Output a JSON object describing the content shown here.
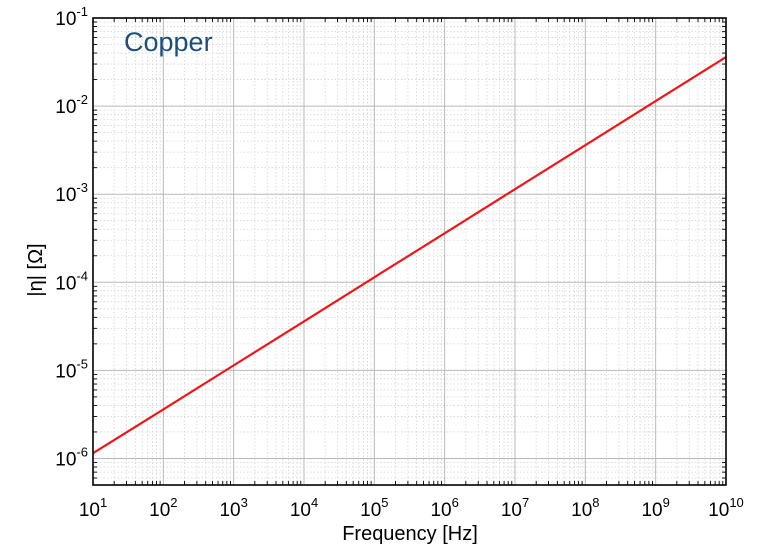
{
  "chart_data": {
    "type": "line",
    "xlabel": "Frequency [Hz]",
    "ylabel": "|η| [Ω]",
    "x_scale": "log",
    "y_scale": "log",
    "xlim": [
      10,
      10000000000
    ],
    "ylim": [
      5e-07,
      0.1
    ],
    "grid": true,
    "x_ticks": [
      {
        "base": "10",
        "exp": "1"
      },
      {
        "base": "10",
        "exp": "2"
      },
      {
        "base": "10",
        "exp": "3"
      },
      {
        "base": "10",
        "exp": "4"
      },
      {
        "base": "10",
        "exp": "5"
      },
      {
        "base": "10",
        "exp": "6"
      },
      {
        "base": "10",
        "exp": "7"
      },
      {
        "base": "10",
        "exp": "8"
      },
      {
        "base": "10",
        "exp": "9"
      },
      {
        "base": "10",
        "exp": "10"
      }
    ],
    "y_ticks": [
      {
        "base": "10",
        "exp": "-6"
      },
      {
        "base": "10",
        "exp": "-5"
      },
      {
        "base": "10",
        "exp": "-4"
      },
      {
        "base": "10",
        "exp": "-3"
      },
      {
        "base": "10",
        "exp": "-2"
      },
      {
        "base": "10",
        "exp": "-1"
      }
    ],
    "annotations": [
      {
        "text": "Copper",
        "color": "#1f4e79"
      }
    ],
    "series": [
      {
        "color": "#e8191c",
        "x": [
          10,
          100,
          1000,
          10000,
          100000,
          1000000,
          10000000,
          100000000,
          1000000000,
          10000000000
        ],
        "y": [
          1.15e-06,
          3.6e-06,
          1.14e-05,
          3.6e-05,
          0.000114,
          0.00036,
          0.00114,
          0.0036,
          0.0114,
          0.036
        ]
      }
    ]
  }
}
